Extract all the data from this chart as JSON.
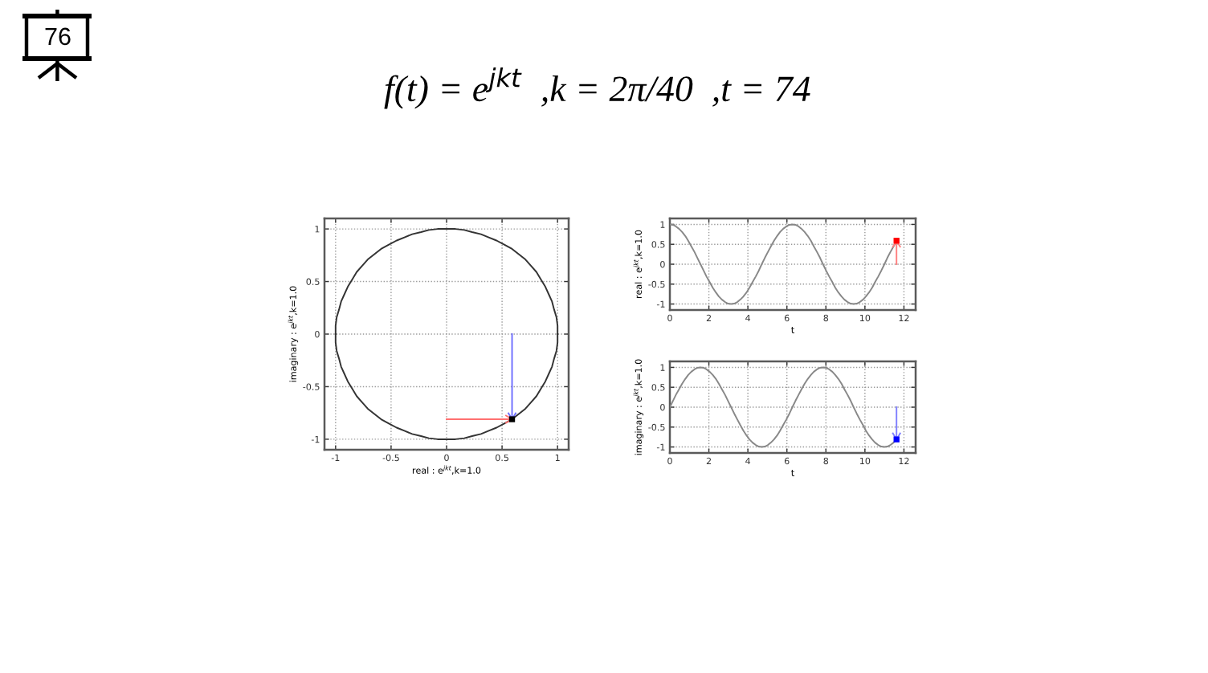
{
  "chart_data": [
    {
      "type": "other",
      "title": "f(t) = e$^{jkt}$  ,k = 2π/40  ,t = 74",
      "annotations": [
        "76"
      ]
    },
    {
      "type": "line",
      "xlabel": "real : e$^{jkt}$,k=1.0",
      "ylabel": "imaginary : e$^{jkt}$,k=1.0",
      "xlim": [
        -1.1,
        1.1
      ],
      "ylim": [
        -1.1,
        1.1
      ],
      "xticks": [
        -1,
        -0.5,
        0,
        0.5,
        1
      ],
      "yticks": [
        -1,
        -0.5,
        0,
        0.5,
        1
      ],
      "grid": true,
      "series": [
        {
          "color": "#333333",
          "x": [
            -1,
            -1,
            -0.99,
            -0.97,
            -0.95,
            -0.92,
            -0.89,
            -0.85,
            -0.81,
            -0.76,
            -0.71,
            -0.65,
            -0.59,
            -0.52,
            -0.45,
            -0.38,
            -0.31,
            -0.23,
            -0.16,
            -0.08,
            0,
            0.08,
            0.16,
            0.23,
            0.31,
            0.38,
            0.45,
            0.52,
            0.59,
            0.65,
            0.71,
            0.76,
            0.81,
            0.85,
            0.89,
            0.92,
            0.95,
            0.97,
            0.99,
            1,
            1
          ],
          "values": [
            0,
            0.08,
            0.16,
            0.23,
            0.31,
            0.38,
            0.45,
            0.52,
            0.59,
            0.65,
            0.71,
            0.76,
            0.81,
            0.85,
            0.89,
            0.92,
            0.95,
            0.97,
            0.99,
            1,
            1,
            1,
            0.99,
            0.97,
            0.95,
            0.92,
            0.89,
            0.85,
            0.81,
            0.76,
            0.71,
            0.65,
            0.59,
            0.52,
            0.45,
            0.38,
            0.31,
            0.23,
            0.16,
            0.08,
            0
          ]
        },
        {
          "color": "#333333",
          "x": [
            -1,
            -1,
            -0.99,
            -0.97,
            -0.95,
            -0.92,
            -0.89,
            -0.85,
            -0.81,
            -0.76,
            -0.71,
            -0.65,
            -0.59,
            -0.52,
            -0.45,
            -0.38,
            -0.31,
            -0.23,
            -0.16,
            -0.08,
            0,
            0.08,
            0.16,
            0.23,
            0.31,
            0.38,
            0.45,
            0.52,
            0.59,
            0.65,
            0.71,
            0.76,
            0.81,
            0.85,
            0.89,
            0.92,
            0.95,
            0.97,
            0.99,
            1,
            1
          ],
          "values": [
            0,
            -0.08,
            -0.16,
            -0.23,
            -0.31,
            -0.38,
            -0.45,
            -0.52,
            -0.59,
            -0.65,
            -0.71,
            -0.76,
            -0.81,
            -0.85,
            -0.89,
            -0.92,
            -0.95,
            -0.97,
            -0.99,
            -1,
            -1,
            -1,
            -0.99,
            -0.97,
            -0.95,
            -0.92,
            -0.89,
            -0.85,
            -0.81,
            -0.76,
            -0.71,
            -0.65,
            -0.59,
            -0.52,
            -0.45,
            -0.38,
            -0.31,
            -0.23,
            -0.16,
            -0.08,
            0
          ]
        },
        {
          "color": "#ff7070",
          "x": [
            0,
            0.59
          ],
          "values": [
            -0.81,
            -0.81
          ]
        },
        {
          "color": "#7070ff",
          "x": [
            0.59,
            0.59
          ],
          "values": [
            0,
            -0.81
          ]
        },
        {
          "type": "scatter",
          "marker": "square",
          "color": "#000000",
          "x": [
            0.59
          ],
          "values": [
            -0.81
          ]
        }
      ]
    },
    {
      "type": "line",
      "xlabel": "t",
      "ylabel": "real : e$^{jkt}$,k=1.0",
      "xlim": [
        0,
        12.6
      ],
      "ylim": [
        -1.15,
        1.15
      ],
      "xticks": [
        0,
        2,
        4,
        6,
        8,
        10,
        12
      ],
      "yticks": [
        -1,
        -0.5,
        0,
        0.5,
        1
      ],
      "grid": true,
      "x": [
        0,
        0.16,
        0.31,
        0.47,
        0.63,
        0.79,
        0.94,
        1.1,
        1.26,
        1.41,
        1.57,
        1.73,
        1.88,
        2.04,
        2.2,
        2.36,
        2.51,
        2.67,
        2.83,
        2.98,
        3.14,
        3.3,
        3.46,
        3.61,
        3.77,
        3.93,
        4.08,
        4.24,
        4.4,
        4.56,
        4.71,
        4.87,
        5.03,
        5.18,
        5.34,
        5.5,
        5.65,
        5.81,
        5.97,
        6.13,
        6.28,
        6.44,
        6.6,
        6.75,
        6.91,
        7.07,
        7.23,
        7.38,
        7.54,
        7.7,
        7.85,
        8.01,
        8.17,
        8.33,
        8.48,
        8.64,
        8.8,
        8.95,
        9.11,
        9.27,
        9.42,
        9.58,
        9.74,
        9.9,
        10.05,
        10.21,
        10.37,
        10.52,
        10.68,
        10.84,
        11.0,
        11.15,
        11.31,
        11.47,
        11.62
      ],
      "series": [
        {
          "color": "#888888",
          "values": [
            1,
            0.99,
            0.95,
            0.89,
            0.81,
            0.71,
            0.59,
            0.45,
            0.31,
            0.16,
            0,
            -0.16,
            -0.31,
            -0.45,
            -0.59,
            -0.71,
            -0.81,
            -0.89,
            -0.95,
            -0.99,
            -1,
            -0.99,
            -0.95,
            -0.89,
            -0.81,
            -0.71,
            -0.59,
            -0.45,
            -0.31,
            -0.16,
            0,
            0.16,
            0.31,
            0.45,
            0.59,
            0.71,
            0.81,
            0.89,
            0.95,
            0.99,
            1,
            0.99,
            0.95,
            0.89,
            0.81,
            0.71,
            0.59,
            0.45,
            0.31,
            0.16,
            0,
            -0.16,
            -0.31,
            -0.45,
            -0.59,
            -0.71,
            -0.81,
            -0.89,
            -0.95,
            -0.99,
            -1,
            -0.99,
            -0.95,
            -0.89,
            -0.81,
            -0.71,
            -0.59,
            -0.45,
            -0.31,
            -0.16,
            0,
            0.16,
            0.31,
            0.45,
            0.59
          ]
        },
        {
          "color": "#ff8080",
          "x": [
            11.62,
            11.62
          ],
          "values": [
            0,
            0.59
          ]
        },
        {
          "type": "scatter",
          "marker": "square",
          "color": "#ff0000",
          "x": [
            11.62
          ],
          "values": [
            0.59
          ]
        }
      ]
    },
    {
      "type": "line",
      "xlabel": "t",
      "ylabel": "imaginary : e$^{jkt}$,k=1.0",
      "xlim": [
        0,
        12.6
      ],
      "ylim": [
        -1.15,
        1.15
      ],
      "xticks": [
        0,
        2,
        4,
        6,
        8,
        10,
        12
      ],
      "yticks": [
        -1,
        -0.5,
        0,
        0.5,
        1
      ],
      "grid": true,
      "x": [
        0,
        0.16,
        0.31,
        0.47,
        0.63,
        0.79,
        0.94,
        1.1,
        1.26,
        1.41,
        1.57,
        1.73,
        1.88,
        2.04,
        2.2,
        2.36,
        2.51,
        2.67,
        2.83,
        2.98,
        3.14,
        3.3,
        3.46,
        3.61,
        3.77,
        3.93,
        4.08,
        4.24,
        4.4,
        4.56,
        4.71,
        4.87,
        5.03,
        5.18,
        5.34,
        5.5,
        5.65,
        5.81,
        5.97,
        6.13,
        6.28,
        6.44,
        6.6,
        6.75,
        6.91,
        7.07,
        7.23,
        7.38,
        7.54,
        7.7,
        7.85,
        8.01,
        8.17,
        8.33,
        8.48,
        8.64,
        8.8,
        8.95,
        9.11,
        9.27,
        9.42,
        9.58,
        9.74,
        9.9,
        10.05,
        10.21,
        10.37,
        10.52,
        10.68,
        10.84,
        11.0,
        11.15,
        11.31,
        11.47,
        11.62
      ],
      "series": [
        {
          "color": "#888888",
          "values": [
            0,
            0.16,
            0.31,
            0.45,
            0.59,
            0.71,
            0.81,
            0.89,
            0.95,
            0.99,
            1,
            0.99,
            0.95,
            0.89,
            0.81,
            0.71,
            0.59,
            0.45,
            0.31,
            0.16,
            0,
            -0.16,
            -0.31,
            -0.45,
            -0.59,
            -0.71,
            -0.81,
            -0.89,
            -0.95,
            -0.99,
            -1,
            -0.99,
            -0.95,
            -0.89,
            -0.81,
            -0.71,
            -0.59,
            -0.45,
            -0.31,
            -0.16,
            0,
            0.16,
            0.31,
            0.45,
            0.59,
            0.71,
            0.81,
            0.89,
            0.95,
            0.99,
            1,
            0.99,
            0.95,
            0.89,
            0.81,
            0.71,
            0.59,
            0.45,
            0.31,
            0.16,
            0,
            -0.16,
            -0.31,
            -0.45,
            -0.59,
            -0.71,
            -0.81,
            -0.89,
            -0.95,
            -0.99,
            -1,
            -0.99,
            -0.95,
            -0.89,
            -0.81
          ]
        },
        {
          "color": "#8080ff",
          "x": [
            11.62,
            11.62
          ],
          "values": [
            0,
            -0.81
          ]
        },
        {
          "type": "scatter",
          "marker": "square",
          "color": "#0000ff",
          "x": [
            11.62
          ],
          "values": [
            -0.81
          ]
        }
      ]
    }
  ]
}
